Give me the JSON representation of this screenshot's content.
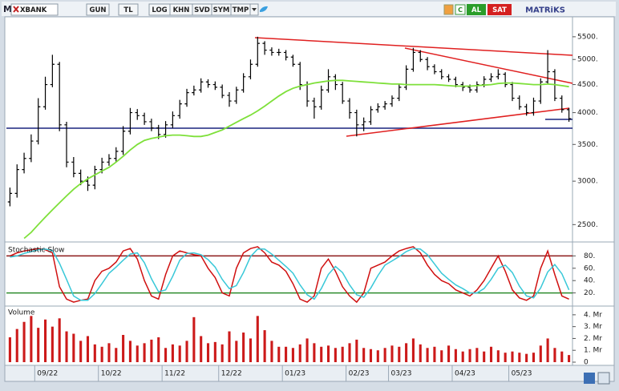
{
  "toolbar": {
    "logo": "M",
    "symbol": "XBANK",
    "buttons": [
      "GUN",
      "TL",
      "LOG",
      "KHN",
      "SVD",
      "SYM",
      "TMP"
    ],
    "buy": "AL",
    "sell": "SAT",
    "brand": "MATRiKS"
  },
  "chart_data": [
    {
      "type": "ohlc",
      "log_scale": true,
      "color": "#000000",
      "ylim": [
        2340,
        5960
      ],
      "yticks": [
        {
          "value": 5500,
          "label": "5500."
        },
        {
          "value": 5000,
          "label": "5000."
        },
        {
          "value": 4500,
          "label": "4500."
        },
        {
          "value": 4000,
          "label": "4000."
        },
        {
          "value": 3500,
          "label": "3500."
        },
        {
          "value": 3000,
          "label": "3000."
        },
        {
          "value": 2500,
          "label": "2500."
        }
      ],
      "categories": [
        null,
        null,
        null,
        null,
        "09/22",
        null,
        null,
        null,
        null,
        null,
        null,
        null,
        null,
        "10/22",
        null,
        null,
        null,
        null,
        null,
        null,
        null,
        null,
        "11/22",
        null,
        null,
        null,
        null,
        null,
        null,
        null,
        "12/22",
        null,
        null,
        null,
        null,
        null,
        null,
        null,
        null,
        "01/23",
        null,
        null,
        null,
        null,
        null,
        null,
        null,
        null,
        "02/23",
        null,
        null,
        null,
        null,
        null,
        "03/23",
        null,
        null,
        null,
        null,
        null,
        null,
        null,
        null,
        "04/23",
        null,
        null,
        null,
        null,
        null,
        null,
        null,
        "05/23",
        null,
        null,
        null,
        null,
        null,
        null,
        null,
        null
      ],
      "open": [
        2750,
        2850,
        3150,
        3300,
        3550,
        4100,
        4500,
        4900,
        3800,
        3250,
        3100,
        3000,
        2950,
        3150,
        3250,
        3300,
        3400,
        3700,
        4000,
        3950,
        3850,
        3750,
        3650,
        3800,
        3950,
        4150,
        4350,
        4400,
        4550,
        4500,
        4450,
        4300,
        4200,
        4400,
        4650,
        4900,
        5350,
        5200,
        5150,
        5150,
        5050,
        4900,
        4500,
        4200,
        4100,
        4400,
        4650,
        4500,
        4200,
        4000,
        3800,
        3850,
        4050,
        4100,
        4150,
        4250,
        4450,
        4800,
        5150,
        5000,
        4850,
        4750,
        4650,
        4600,
        4500,
        4450,
        4400,
        4500,
        4600,
        4650,
        4700,
        4500,
        4250,
        4100,
        4000,
        4200,
        4550,
        4750,
        4250,
        4050
      ],
      "high": [
        2920,
        3220,
        3380,
        3650,
        4250,
        4650,
        5100,
        4950,
        3850,
        3320,
        3150,
        3060,
        3200,
        3310,
        3360,
        3460,
        3780,
        4080,
        4060,
        4000,
        3900,
        3800,
        3860,
        4020,
        4220,
        4420,
        4480,
        4620,
        4600,
        4560,
        4500,
        4360,
        4460,
        4720,
        5000,
        5500,
        5400,
        5260,
        5230,
        5200,
        5100,
        4950,
        4560,
        4260,
        4480,
        4800,
        4700,
        4550,
        4250,
        4050,
        3920,
        4110,
        4160,
        4200,
        4300,
        4520,
        4880,
        5250,
        5200,
        5050,
        4900,
        4800,
        4700,
        4650,
        4550,
        4500,
        4560,
        4660,
        4720,
        4800,
        4740,
        4550,
        4300,
        4150,
        4260,
        4620,
        5200,
        4800,
        4300,
        4080
      ],
      "low": [
        2700,
        2800,
        3100,
        3250,
        3500,
        4050,
        4450,
        3700,
        3180,
        3050,
        2950,
        2880,
        2900,
        3100,
        3200,
        3250,
        3350,
        3650,
        3880,
        3800,
        3700,
        3580,
        3600,
        3750,
        3900,
        4100,
        4300,
        4350,
        4440,
        4400,
        4250,
        4100,
        4150,
        4350,
        4600,
        4850,
        5100,
        5080,
        5080,
        4980,
        4850,
        4400,
        4100,
        3900,
        4050,
        4350,
        4400,
        4150,
        3900,
        3620,
        3700,
        3800,
        4000,
        4050,
        4100,
        4200,
        4400,
        4750,
        4950,
        4780,
        4700,
        4600,
        4550,
        4450,
        4380,
        4350,
        4350,
        4450,
        4550,
        4600,
        4450,
        4200,
        4050,
        3950,
        3950,
        4150,
        4500,
        4200,
        4000,
        3850
      ],
      "close": [
        2850,
        3150,
        3300,
        3550,
        4100,
        4500,
        4900,
        3800,
        3250,
        3100,
        3000,
        2950,
        3150,
        3250,
        3300,
        3400,
        3700,
        4000,
        3950,
        3850,
        3750,
        3650,
        3800,
        3950,
        4150,
        4350,
        4400,
        4550,
        4500,
        4450,
        4300,
        4200,
        4400,
        4650,
        4900,
        5350,
        5200,
        5150,
        5150,
        5050,
        4900,
        4500,
        4200,
        4100,
        4400,
        4650,
        4500,
        4200,
        4000,
        3800,
        3850,
        4050,
        4100,
        4150,
        4250,
        4450,
        4800,
        5150,
        5000,
        4850,
        4750,
        4650,
        4600,
        4500,
        4450,
        4400,
        4500,
        4600,
        4650,
        4700,
        4500,
        4250,
        4100,
        4000,
        4200,
        4550,
        4750,
        4250,
        4050,
        3900
      ],
      "moving_average": {
        "color": "#7ee03a",
        "values": [
          null,
          null,
          2360,
          2420,
          2500,
          2580,
          2660,
          2740,
          2820,
          2900,
          2970,
          3030,
          3080,
          3130,
          3180,
          3250,
          3330,
          3420,
          3500,
          3560,
          3590,
          3610,
          3630,
          3640,
          3640,
          3630,
          3620,
          3620,
          3640,
          3680,
          3720,
          3780,
          3840,
          3900,
          3960,
          4030,
          4110,
          4200,
          4290,
          4370,
          4430,
          4470,
          4500,
          4530,
          4550,
          4570,
          4580,
          4580,
          4570,
          4560,
          4550,
          4540,
          4530,
          4520,
          4510,
          4510,
          4500,
          4500,
          4500,
          4500,
          4500,
          4490,
          4480,
          4470,
          4470,
          4470,
          4480,
          4490,
          4500,
          4520,
          4530,
          4530,
          4520,
          4510,
          4500,
          4500,
          4510,
          4500,
          4480,
          4460
        ]
      }
    },
    {
      "type": "line",
      "title": "Stochastic Slow",
      "ylim": [
        0,
        100
      ],
      "yticks": [
        {
          "value": 80,
          "label": "80."
        },
        {
          "value": 60,
          "label": "60."
        },
        {
          "value": 40,
          "label": "40."
        },
        {
          "value": 20,
          "label": "20."
        }
      ],
      "levels": [
        {
          "value": 80,
          "color": "#8b1a1a"
        },
        {
          "value": 20,
          "color": "#2e8b2e"
        }
      ],
      "series": [
        {
          "color": "#d01010",
          "values": [
            80,
            85,
            88,
            90,
            92,
            90,
            85,
            30,
            10,
            5,
            8,
            10,
            40,
            55,
            60,
            70,
            88,
            92,
            75,
            40,
            15,
            10,
            50,
            80,
            88,
            85,
            82,
            80,
            60,
            45,
            20,
            15,
            60,
            85,
            92,
            95,
            85,
            70,
            65,
            55,
            35,
            10,
            5,
            15,
            60,
            75,
            55,
            30,
            15,
            5,
            20,
            60,
            65,
            70,
            80,
            88,
            92,
            95,
            85,
            65,
            50,
            40,
            35,
            25,
            20,
            15,
            25,
            40,
            60,
            80,
            55,
            25,
            12,
            8,
            15,
            60,
            88,
            50,
            15,
            10
          ]
        },
        {
          "color": "#38c8d8",
          "values": [
            78,
            80,
            84,
            87,
            90,
            91,
            89,
            68,
            42,
            15,
            8,
            8,
            19,
            35,
            52,
            62,
            73,
            83,
            85,
            69,
            43,
            22,
            25,
            47,
            73,
            84,
            85,
            82,
            74,
            62,
            42,
            27,
            32,
            53,
            79,
            91,
            91,
            83,
            73,
            63,
            52,
            33,
            17,
            10,
            27,
            50,
            63,
            53,
            33,
            17,
            13,
            28,
            48,
            65,
            72,
            79,
            87,
            92,
            91,
            82,
            67,
            52,
            42,
            33,
            27,
            20,
            20,
            27,
            42,
            60,
            65,
            53,
            31,
            15,
            12,
            28,
            54,
            66,
            51,
            25
          ]
        }
      ]
    },
    {
      "type": "bar",
      "title": "Volume",
      "color": "#cc1a1a",
      "ylim": [
        0,
        4.6
      ],
      "yticks": [
        {
          "value": 4,
          "label": "4. Mr"
        },
        {
          "value": 3,
          "label": "3. Mr"
        },
        {
          "value": 2,
          "label": "2. Mr"
        },
        {
          "value": 1,
          "label": "1. Mr"
        },
        0
      ],
      "values": [
        2.1,
        2.8,
        3.4,
        3.9,
        2.9,
        3.6,
        3.0,
        3.7,
        2.6,
        2.4,
        1.8,
        2.2,
        1.5,
        1.3,
        1.6,
        1.2,
        2.3,
        1.8,
        1.4,
        1.6,
        1.9,
        2.1,
        1.2,
        1.5,
        1.4,
        1.8,
        3.8,
        2.2,
        1.6,
        1.7,
        1.5,
        2.6,
        1.8,
        2.5,
        2.0,
        3.9,
        2.7,
        1.8,
        1.3,
        1.3,
        1.2,
        1.5,
        2.0,
        1.6,
        1.3,
        1.4,
        1.2,
        1.3,
        1.6,
        1.9,
        1.2,
        1.1,
        1.0,
        1.2,
        1.4,
        1.3,
        1.6,
        2.0,
        1.5,
        1.2,
        1.3,
        1.0,
        1.4,
        1.1,
        0.9,
        1.1,
        1.2,
        0.9,
        1.3,
        1.0,
        0.8,
        0.9,
        0.8,
        0.7,
        0.8,
        1.4,
        2.0,
        1.2,
        0.9,
        0.6
      ]
    }
  ]
}
